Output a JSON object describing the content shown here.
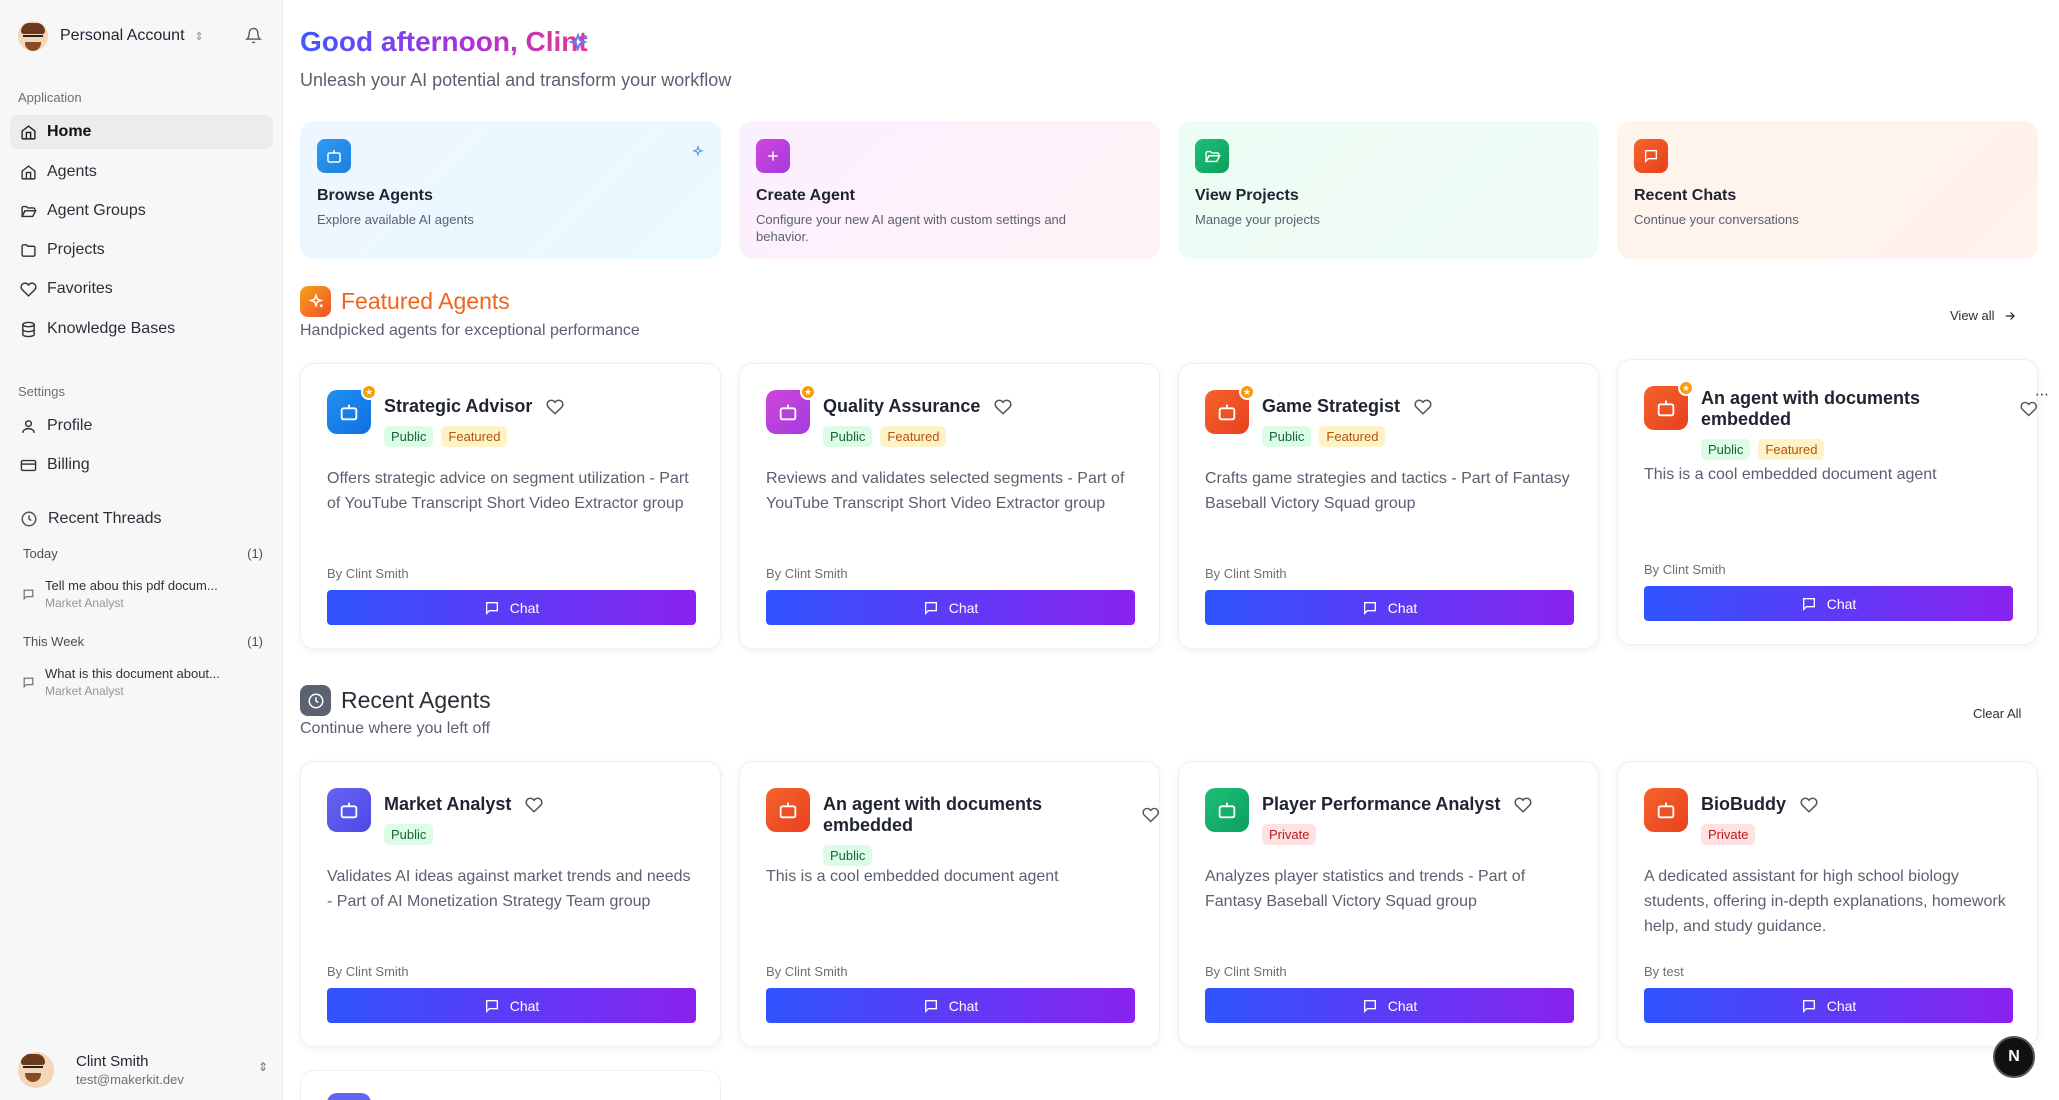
{
  "account": {
    "name": "Personal Account"
  },
  "sidebar": {
    "app_label": "Application",
    "items": [
      {
        "label": "Home",
        "icon": "home-icon"
      },
      {
        "label": "Agents",
        "icon": "home-icon"
      },
      {
        "label": "Agent Groups",
        "icon": "folder-open-icon"
      },
      {
        "label": "Projects",
        "icon": "folder-icon"
      },
      {
        "label": "Favorites",
        "icon": "heart-icon"
      },
      {
        "label": "Knowledge Bases",
        "icon": "database-icon"
      }
    ],
    "settings_label": "Settings",
    "settings_items": [
      {
        "label": "Profile",
        "icon": "user-icon"
      },
      {
        "label": "Billing",
        "icon": "card-icon"
      }
    ],
    "threads_label": "Recent Threads",
    "groups": [
      {
        "label": "Today",
        "count": "(1)",
        "threads": [
          {
            "title": "Tell me abou this pdf docum...",
            "agent": "Market Analyst"
          }
        ]
      },
      {
        "label": "This Week",
        "count": "(1)",
        "threads": [
          {
            "title": "What is this document about...",
            "agent": "Market Analyst"
          }
        ]
      }
    ],
    "user": {
      "name": "Clint Smith",
      "email": "test@makerkit.dev"
    }
  },
  "header": {
    "greeting": "Good afternoon, Clint",
    "subtitle": "Unleash your AI potential and transform your workflow"
  },
  "quick_actions": [
    {
      "title": "Browse Agents",
      "desc": "Explore available AI agents",
      "color": "#2f9bf0",
      "icon": "bot-icon"
    },
    {
      "title": "Create Agent",
      "desc": "Configure your new AI agent with custom settings and behavior.",
      "color": "#c53bd8",
      "icon": "plus-icon"
    },
    {
      "title": "View Projects",
      "desc": "Manage your projects",
      "color": "#16b36b",
      "icon": "folder-icon"
    },
    {
      "title": "Recent Chats",
      "desc": "Continue your conversations",
      "color": "#f0502a",
      "icon": "message-icon"
    }
  ],
  "featured": {
    "title": "Featured Agents",
    "subtitle": "Handpicked agents for exceptional performance",
    "view_all": "View all",
    "agents": [
      {
        "name": "Strategic Advisor",
        "tags": [
          "Public",
          "Featured"
        ],
        "desc": "Offers strategic advice on segment utilization - Part of YouTube Transcript Short Video Extractor group",
        "by": "By Clint Smith",
        "chat": "Chat",
        "color": "#1f8ff0"
      },
      {
        "name": "Quality Assurance",
        "tags": [
          "Public",
          "Featured"
        ],
        "desc": "Reviews and validates selected segments - Part of YouTube Transcript Short Video Extractor group",
        "by": "By Clint Smith",
        "chat": "Chat",
        "color": "#c53bd8"
      },
      {
        "name": "Game Strategist",
        "tags": [
          "Public",
          "Featured"
        ],
        "desc": "Crafts game strategies and tactics - Part of Fantasy Baseball Victory Squad group",
        "by": "By Clint Smith",
        "chat": "Chat",
        "color": "#f0502a"
      },
      {
        "name": "An agent with documents embedded",
        "tags": [
          "Public",
          "Featured"
        ],
        "desc": "This is a cool embedded document agent",
        "by": "By Clint Smith",
        "chat": "Chat",
        "color": "#f0502a"
      }
    ]
  },
  "recent": {
    "title": "Recent Agents",
    "subtitle": "Continue where you left off",
    "clear_all": "Clear All",
    "agents": [
      {
        "name": "Market Analyst",
        "tags": [
          "Public"
        ],
        "desc": "Validates AI ideas against market trends and needs - Part of AI Monetization Strategy Team group",
        "by": "By Clint Smith",
        "chat": "Chat",
        "color": "#5b5cf0"
      },
      {
        "name": "An agent with documents embedded",
        "tags": [
          "Public"
        ],
        "desc": "This is a cool embedded document agent",
        "by": "By Clint Smith",
        "chat": "Chat",
        "color": "#f0502a"
      },
      {
        "name": "Player Performance Analyst",
        "tags": [
          "Private"
        ],
        "desc": "Analyzes player statistics and trends - Part of Fantasy Baseball Victory Squad group",
        "by": "By Clint Smith",
        "chat": "Chat",
        "color": "#16b36b"
      },
      {
        "name": "BioBuddy",
        "tags": [
          "Private"
        ],
        "desc": "A dedicated assistant for high school biology students, offering in-depth explanations, homework help, and study guidance.",
        "by": "By test",
        "chat": "Chat",
        "color": "#f0502a"
      }
    ]
  },
  "next_badge": "N"
}
